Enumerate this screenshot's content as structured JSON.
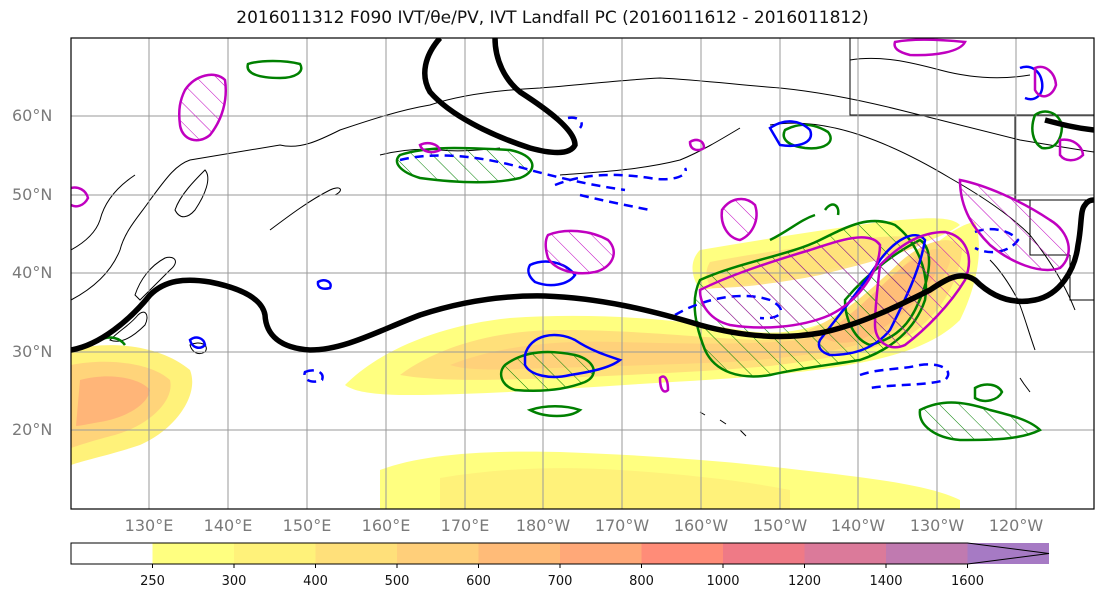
{
  "title": "2016011312 F090 IVT/θe/PV, IVT Landfall PC (2016011612 - 2016011812)",
  "lat_labels": [
    "60°N",
    "50°N",
    "40°N",
    "30°N",
    "20°N"
  ],
  "lon_labels": [
    "130°E",
    "140°E",
    "150°E",
    "160°E",
    "170°E",
    "180°W",
    "170°W",
    "160°W",
    "150°W",
    "140°W",
    "130°W",
    "120°W"
  ],
  "colorbar": {
    "levels": [
      "250",
      "300",
      "400",
      "500",
      "600",
      "700",
      "800",
      "1000",
      "1200",
      "1400",
      "1600"
    ],
    "colors": [
      "#ffff80",
      "#fff27a",
      "#ffe07a",
      "#ffcf7a",
      "#ffbb78",
      "#ffa878",
      "#ff8c78",
      "#ef7a86",
      "#db7a9a",
      "#c07ab0",
      "#a67ac4"
    ]
  },
  "colors": {
    "ivt_fill": "#ffd37a",
    "pv_positive": "#008000",
    "pv_negative": "#0000ff",
    "theta_e": "#c000c0",
    "contour_line": "#000000"
  }
}
